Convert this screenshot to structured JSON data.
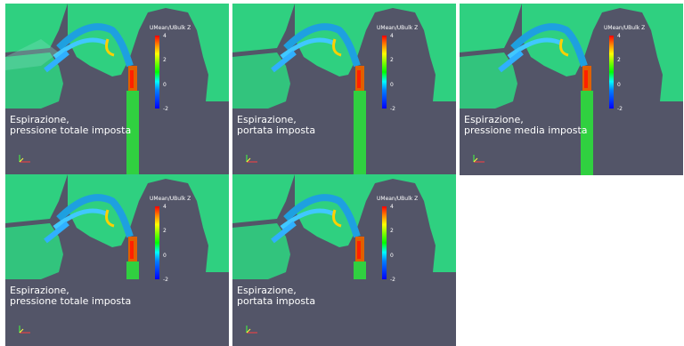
{
  "colorbar": {
    "title": "UMean/UBulk Z",
    "ticks": [
      "4",
      "2",
      "0",
      "-2"
    ],
    "gradient": [
      "#ff0000",
      "#ffff00",
      "#00ff00",
      "#00ffff",
      "#0000ff"
    ]
  },
  "colors": {
    "background": "#535568",
    "field": "#2fd080",
    "page": "#ffffff"
  },
  "panels": [
    {
      "caption_line1": "Espirazione,",
      "caption_line2": "pressione totale imposta"
    },
    {
      "caption_line1": "Espirazione,",
      "caption_line2": "portata imposta"
    },
    {
      "caption_line1": "Espirazione,",
      "caption_line2": "pressione media imposta"
    },
    {
      "caption_line1": "Espirazione,",
      "caption_line2": "pressione totale imposta"
    },
    {
      "caption_line1": "Espirazione,",
      "caption_line2": "portata imposta"
    }
  ]
}
